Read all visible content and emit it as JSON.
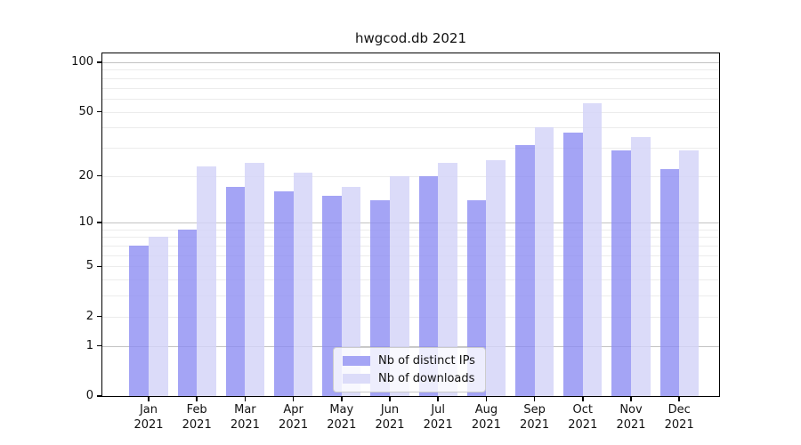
{
  "title": "hwgcod.db 2021",
  "chart_data": {
    "type": "bar",
    "title": "hwgcod.db 2021",
    "categories": [
      "Jan 2021",
      "Feb 2021",
      "Mar 2021",
      "Apr 2021",
      "May 2021",
      "Jun 2021",
      "Jul 2021",
      "Aug 2021",
      "Sep 2021",
      "Oct 2021",
      "Nov 2021",
      "Dec 2021"
    ],
    "month_labels": [
      "Jan",
      "Feb",
      "Mar",
      "Apr",
      "May",
      "Jun",
      "Jul",
      "Aug",
      "Sep",
      "Oct",
      "Nov",
      "Dec"
    ],
    "year_label": "2021",
    "series": [
      {
        "name": "Nb of distinct IPs",
        "color": "#a5a5f5",
        "values": [
          7,
          9,
          17,
          16,
          15,
          14,
          20,
          14,
          31,
          37,
          29,
          22
        ]
      },
      {
        "name": "Nb of downloads",
        "color": "#dcdcf9",
        "values": [
          8,
          23,
          24,
          21,
          17,
          20,
          24,
          25,
          40,
          56,
          35,
          29
        ]
      }
    ],
    "xlabel": "",
    "ylabel": "",
    "yscale": "log1p",
    "ylim": [
      0,
      113
    ],
    "yticks": [
      0,
      1,
      2,
      5,
      10,
      20,
      50,
      100
    ],
    "grid": true,
    "legend_position": "lower center"
  }
}
